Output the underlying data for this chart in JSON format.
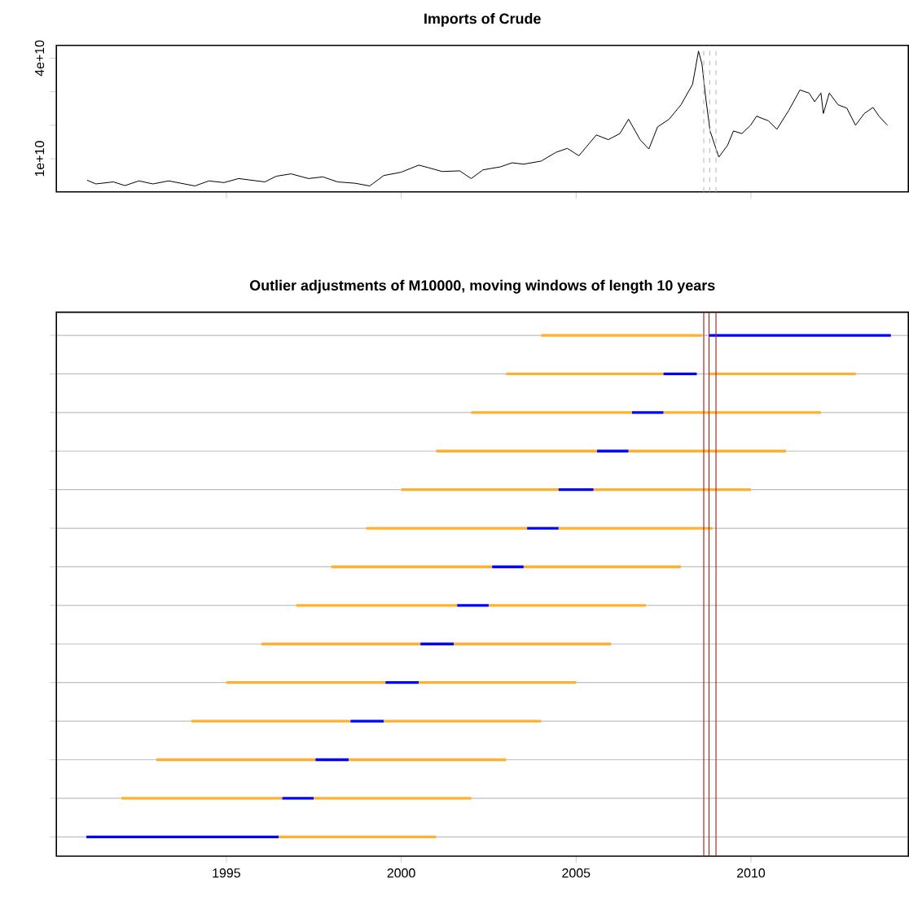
{
  "chart_data": [
    {
      "type": "line",
      "title": "Imports of Crude",
      "xlim": [
        1990.14,
        2014.5
      ],
      "xticks": [
        1995,
        2000,
        2005,
        2010
      ],
      "ylim": [
        120000000.0,
        43800000000.0
      ],
      "yticks": [
        {
          "value": 10000000000.0,
          "label": "1e+10"
        },
        {
          "value": 20000000000.0,
          "label": null
        },
        {
          "value": 30000000000.0,
          "label": null
        },
        {
          "value": 40000000000.0,
          "label": "4e+10"
        }
      ],
      "tick_labels": "y",
      "ref_lines": [
        {
          "axis": "x",
          "value": 2008.65,
          "color": "#c0c0c0",
          "line_style": "dashed"
        },
        {
          "axis": "x",
          "value": 2008.82,
          "color": "#c0c0c0",
          "line_style": "dashed"
        },
        {
          "axis": "x",
          "value": 2009.0,
          "color": "#c0c0c0",
          "line_style": "dashed"
        }
      ],
      "series": [
        {
          "color": "#000000",
          "x": [
            1991.02,
            1991.27,
            1991.77,
            1992.1,
            1992.5,
            1992.9,
            1993.35,
            1994.1,
            1994.5,
            1994.93,
            1995.35,
            1996.1,
            1996.43,
            1996.85,
            1997.35,
            1997.76,
            1998.18,
            1998.68,
            1999.1,
            1999.5,
            2000.0,
            2000.5,
            2000.76,
            2001.17,
            2001.67,
            2002.0,
            2002.34,
            2002.84,
            2003.17,
            2003.5,
            2004.0,
            2004.42,
            2004.75,
            2005.08,
            2005.58,
            2005.92,
            2006.25,
            2006.5,
            2006.83,
            2007.08,
            2007.33,
            2007.66,
            2008.0,
            2008.33,
            2008.5,
            2008.6,
            2008.7,
            2008.83,
            2009.08,
            2009.33,
            2009.5,
            2009.74,
            2009.99,
            2010.16,
            2010.5,
            2010.74,
            2011.08,
            2011.4,
            2011.66,
            2011.82,
            2012.0,
            2012.07,
            2012.24,
            2012.49,
            2012.74,
            2012.99,
            2013.24,
            2013.49,
            2013.66,
            2013.9
          ],
          "values": [
            3600000000.0,
            2500000000.0,
            3100000000.0,
            2000000000.0,
            3400000000.0,
            2500000000.0,
            3400000000.0,
            1900000000.0,
            3400000000.0,
            2900000000.0,
            4100000000.0,
            3100000000.0,
            4800000000.0,
            5500000000.0,
            4100000000.0,
            4600000000.0,
            3100000000.0,
            2700000000.0,
            1900000000.0,
            5000000000.0,
            6000000000.0,
            8100000000.0,
            7400000000.0,
            6200000000.0,
            6400000000.0,
            4100000000.0,
            6700000000.0,
            7600000000.0,
            8800000000.0,
            8400000000.0,
            9300000000.0,
            11900000000.0,
            13100000000.0,
            10900000000.0,
            17100000000.0,
            15700000000.0,
            17500000000.0,
            21800000000.0,
            15700000000.0,
            12900000000.0,
            19500000000.0,
            21800000000.0,
            26100000000.0,
            32200000000.0,
            42100000000.0,
            38200000000.0,
            28700000000.0,
            18300000000.0,
            10500000000.0,
            14000000000.0,
            18300000000.0,
            17500000000.0,
            20000000000.0,
            22700000000.0,
            21300000000.0,
            18800000000.0,
            24400000000.0,
            30500000000.0,
            29600000000.0,
            27000000000.0,
            29600000000.0,
            23500000000.0,
            29600000000.0,
            26100000000.0,
            25100000000.0,
            20000000000.0,
            23500000000.0,
            25300000000.0,
            22700000000.0,
            20000000000.0
          ]
        }
      ]
    },
    {
      "type": "bar",
      "orientation": "horizontal",
      "title": "Outlier adjustments of M10000, moving windows of length 10 years",
      "categories": [
        null,
        null,
        null,
        null,
        null,
        null,
        null,
        null,
        null,
        null,
        null,
        null,
        null,
        null
      ],
      "xlim": [
        1990.14,
        2014.5
      ],
      "xticks": [
        1995,
        2000,
        2005,
        2010
      ],
      "tick_labels": "x",
      "grid": "y",
      "ref_lines": [
        {
          "axis": "x",
          "value": 2008.65,
          "color": "#a52a2a"
        },
        {
          "axis": "x",
          "value": 2008.8,
          "color": "#a52a2a"
        },
        {
          "axis": "x",
          "value": 2009.0,
          "color": "#a52a2a"
        }
      ],
      "series": [
        {
          "color": "#ffb030",
          "base": [
            2004,
            2003,
            2002,
            2001,
            2000,
            1999,
            1998,
            1997,
            1996,
            1995,
            1994,
            1993,
            1992,
            null
          ],
          "values": [
            4.6,
            4.5,
            4.6,
            4.6,
            4.5,
            4.6,
            4.6,
            4.6,
            4.55,
            4.55,
            4.55,
            4.55,
            4.6,
            null
          ]
        },
        {
          "color": "#0000ff",
          "base": [
            2008.8,
            2007.5,
            2006.6,
            2005.6,
            2004.5,
            2003.6,
            2002.6,
            2001.6,
            2000.55,
            1999.55,
            1998.55,
            1997.55,
            1996.6,
            1991.0
          ],
          "values": [
            5.2,
            0.95,
            0.9,
            0.9,
            1.0,
            0.9,
            0.9,
            0.9,
            0.95,
            0.95,
            0.95,
            0.95,
            0.9,
            5.5
          ]
        },
        {
          "color": "#ffb030",
          "base": [
            null,
            2008.8,
            2007.5,
            2006.5,
            2005.5,
            2004.5,
            2003.5,
            2002.5,
            2001.5,
            2000.5,
            1999.5,
            1998.5,
            1997.5,
            1996.5
          ],
          "values": [
            null,
            4.2,
            4.5,
            4.5,
            4.5,
            4.4,
            4.5,
            4.5,
            4.5,
            4.5,
            4.5,
            4.5,
            4.5,
            4.5
          ]
        }
      ]
    }
  ]
}
